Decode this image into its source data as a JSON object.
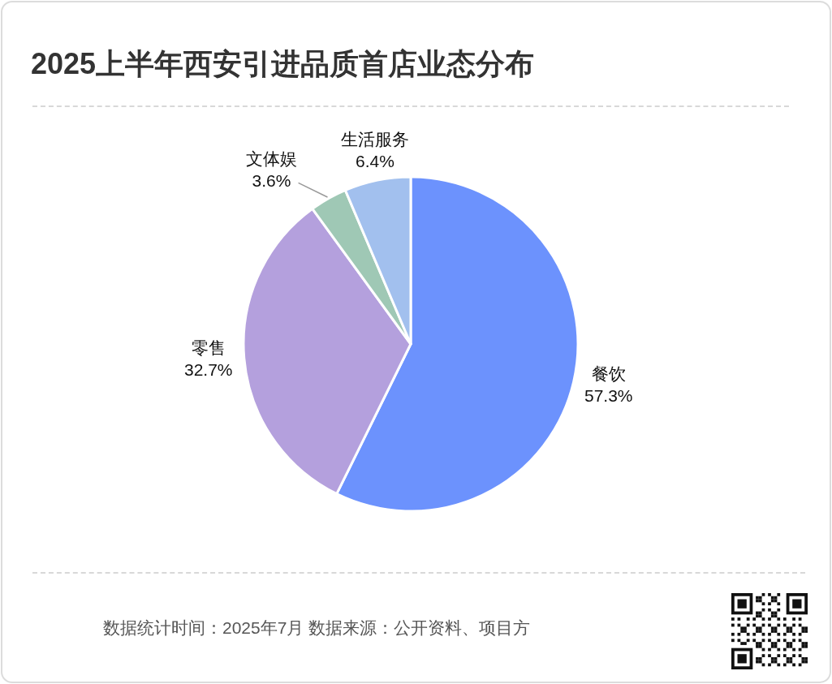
{
  "chart_data": {
    "type": "pie",
    "title": "2025上半年西安引进品质首店业态分布",
    "categories": [
      "餐饮",
      "零售",
      "文体娱",
      "生活服务"
    ],
    "values": [
      57.3,
      32.7,
      3.6,
      6.4
    ],
    "colors": [
      "#6c92fd",
      "#b4a0dd",
      "#9fc8b5",
      "#a2c0ee"
    ],
    "value_labels": [
      "57.3%",
      "32.7%",
      "3.6%",
      "6.4%"
    ],
    "legend": false,
    "annotations": [
      "数据统计时间：2025年7月 数据来源：公开资料、项目方"
    ]
  }
}
